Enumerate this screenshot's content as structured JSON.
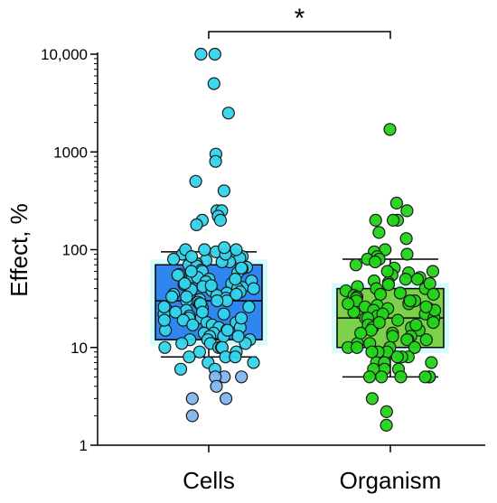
{
  "chart_data": {
    "type": "box-scatter",
    "ylabel": "Effect, %",
    "yscale": "log",
    "ylim": [
      1,
      10000
    ],
    "yticks": [
      {
        "value": 1,
        "label": "1"
      },
      {
        "value": 10,
        "label": "10"
      },
      {
        "value": 100,
        "label": "100"
      },
      {
        "value": 1000,
        "label": "1000"
      },
      {
        "value": 10000,
        "label": "10,000"
      }
    ],
    "categories": [
      "Cells",
      "Organism"
    ],
    "significance": {
      "label": "*",
      "between": [
        "Cells",
        "Organism"
      ]
    },
    "colors": {
      "cells_box": "#2f86f0",
      "cells_points": "#33d4ec",
      "cells_points_low": "#7fb6f0",
      "organism_box": "#7cd04a",
      "organism_points": "#22d418",
      "halo": "#c8fbff"
    },
    "series": [
      {
        "name": "Cells",
        "box": {
          "q1": 12,
          "median": 30,
          "q3": 70,
          "whisker_low": 8,
          "whisker_high": 95
        },
        "points": [
          10000,
          10000,
          5000,
          2500,
          950,
          800,
          500,
          400,
          250,
          250,
          220,
          200,
          200,
          180,
          95,
          92,
          90,
          88,
          85,
          82,
          80,
          78,
          75,
          72,
          70,
          68,
          66,
          64,
          62,
          60,
          58,
          56,
          55,
          53,
          52,
          50,
          48,
          47,
          45,
          44,
          42,
          41,
          40,
          39,
          38,
          37,
          36,
          35,
          34,
          33,
          32,
          31,
          30,
          30,
          29,
          28,
          27,
          26,
          25,
          25,
          24,
          23,
          22,
          22,
          21,
          20,
          20,
          19,
          18,
          18,
          17,
          16,
          16,
          15,
          15,
          14,
          14,
          13,
          13,
          12,
          12,
          12,
          11,
          11,
          11,
          10,
          10,
          10,
          10,
          9,
          9,
          8,
          8,
          8,
          7,
          7,
          6,
          6,
          5,
          5,
          5,
          4,
          3,
          3,
          2,
          100,
          100,
          100,
          85,
          65,
          45,
          35,
          28,
          23,
          19,
          17,
          15,
          13,
          50,
          40,
          30,
          20,
          60,
          26,
          33,
          43,
          75,
          90,
          105
        ]
      },
      {
        "name": "Organism",
        "box": {
          "q1": 10,
          "median": 20,
          "q3": 40,
          "whisker_low": 5,
          "whisker_high": 80
        },
        "points": [
          1700,
          300,
          250,
          200,
          200,
          200,
          150,
          130,
          100,
          95,
          90,
          85,
          80,
          80,
          75,
          70,
          65,
          60,
          58,
          55,
          52,
          50,
          48,
          46,
          44,
          42,
          40,
          40,
          38,
          36,
          35,
          34,
          33,
          32,
          30,
          30,
          29,
          28,
          27,
          26,
          25,
          25,
          24,
          23,
          22,
          21,
          20,
          20,
          20,
          19,
          18,
          17,
          16,
          16,
          15,
          15,
          14,
          13,
          13,
          12,
          12,
          11,
          11,
          10,
          10,
          10,
          10,
          9,
          9,
          8,
          8,
          8,
          7,
          7,
          6,
          6,
          6,
          5,
          5,
          5,
          5,
          5,
          5,
          3,
          2.2,
          1.6,
          45,
          35,
          28,
          22,
          18,
          14,
          12,
          9,
          7,
          30,
          24,
          17,
          60,
          50,
          26
        ]
      }
    ]
  }
}
